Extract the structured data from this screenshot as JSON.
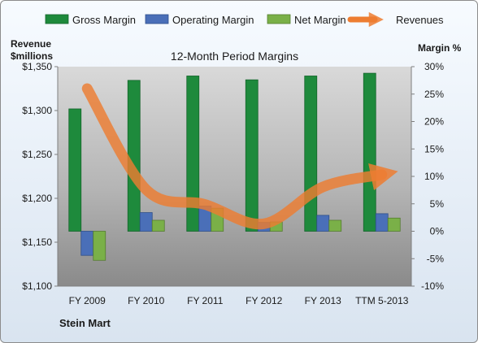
{
  "chart_data": {
    "type": "bar",
    "title": "12-Month Period Margins",
    "company": "Stein Mart",
    "left_axis_label": [
      "Revenue",
      "$millions"
    ],
    "right_axis_label": "Margin %",
    "categories": [
      "FY 2009",
      "FY 2010",
      "FY 2011",
      "FY 2012",
      "FY 2013",
      "TTM 5-2013"
    ],
    "left_ylim": [
      1100,
      1350
    ],
    "left_ticks": [
      "$1,100",
      "$1,150",
      "$1,200",
      "$1,250",
      "$1,300",
      "$1,350"
    ],
    "right_ylim": [
      -10,
      30
    ],
    "right_ticks": [
      "-10%",
      "-5%",
      "0%",
      "5%",
      "10%",
      "15%",
      "20%",
      "25%",
      "30%"
    ],
    "series": [
      {
        "name": "Gross Margin",
        "axis": "right",
        "color": "#1e8a3c",
        "values": [
          22.3,
          27.5,
          28.3,
          27.6,
          28.3,
          28.8
        ]
      },
      {
        "name": "Operating Margin",
        "axis": "right",
        "color": "#4a6fb8",
        "values": [
          -4.4,
          3.4,
          4.6,
          1.6,
          2.9,
          3.2
        ]
      },
      {
        "name": "Net Margin",
        "axis": "right",
        "color": "#7ab048",
        "values": [
          -5.3,
          2.0,
          4.2,
          1.7,
          2.0,
          2.4
        ]
      },
      {
        "name": "Revenues",
        "axis": "left",
        "type": "line",
        "color": "#ed7d31",
        "values": [
          1325,
          1210,
          1193,
          1171,
          1213,
          1227
        ]
      }
    ],
    "legend_position": "top",
    "grid": false
  }
}
